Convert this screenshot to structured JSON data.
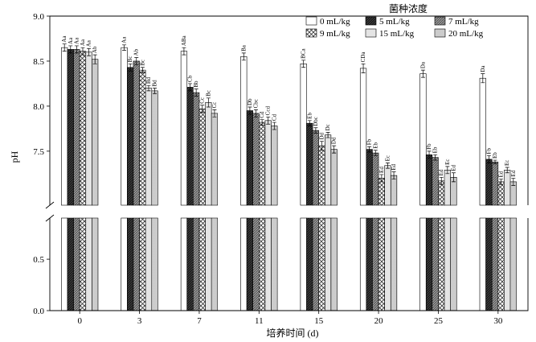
{
  "chart_data": {
    "type": "bar",
    "xlabel": "培养时间 (d)",
    "ylabel": "pH",
    "categories": [
      "0",
      "3",
      "7",
      "11",
      "15",
      "20",
      "25",
      "30"
    ],
    "legend_title": "菌种浓度",
    "legend_placement": "top-right",
    "y_axis": {
      "broken": true,
      "lower_range": [
        0.0,
        0.9
      ],
      "lower_ticks": [
        "0.0",
        "0.5"
      ],
      "upper_range": [
        6.9,
        9.0
      ],
      "upper_ticks": [
        "7.5",
        "8.0",
        "8.5",
        "9.0"
      ]
    },
    "grid": false,
    "series": [
      {
        "name": "0 mL/kg",
        "fill": "#ffffff",
        "pattern": "open",
        "values": [
          8.65,
          8.65,
          8.61,
          8.55,
          8.47,
          8.42,
          8.36,
          8.31
        ],
        "errors": [
          0.04,
          0.03,
          0.04,
          0.04,
          0.04,
          0.05,
          0.04,
          0.05
        ],
        "labels": [
          "Aa",
          "Aa",
          "ABa",
          "Ba",
          "BCa",
          "CDa",
          "Da",
          "Da"
        ]
      },
      {
        "name": "5 mL/kg",
        "fill": "#222222",
        "pattern": "dark",
        "values": [
          8.63,
          8.43,
          8.21,
          7.95,
          7.81,
          7.52,
          7.46,
          7.41
        ],
        "errors": [
          0.04,
          0.04,
          0.04,
          0.04,
          0.03,
          0.03,
          0.04,
          0.04
        ],
        "labels": [
          "Aa",
          "Bc",
          "Cb",
          "Db",
          "Eb",
          "Fb",
          "Fb",
          "Fb"
        ]
      },
      {
        "name": "7 mL/kg",
        "fill": "#8a8a8a",
        "pattern": "gray-hatch",
        "values": [
          8.63,
          8.5,
          8.15,
          7.92,
          7.73,
          7.48,
          7.43,
          7.38
        ],
        "errors": [
          0.04,
          0.04,
          0.04,
          0.04,
          0.03,
          0.03,
          0.03,
          0.02
        ],
        "labels": [
          "Aa",
          "Ab",
          "Bb",
          "Cbc",
          "Dbc",
          "Eb",
          "Eb",
          "Eb"
        ]
      },
      {
        "name": "9 mL/kg",
        "fill": "#ffffff",
        "pattern": "crosshatch",
        "values": [
          8.61,
          8.4,
          7.97,
          7.82,
          7.56,
          7.2,
          7.17,
          7.16
        ],
        "errors": [
          0.04,
          0.03,
          0.04,
          0.03,
          0.05,
          0.04,
          0.04,
          0.03
        ],
        "labels": [
          "Aa",
          "Bc",
          "Cc",
          "Cd",
          "Dd",
          "Ed",
          "Ed",
          "Ed"
        ]
      },
      {
        "name": "15 mL/kg",
        "fill": "#ffffff",
        "pattern": "vertical-lines",
        "values": [
          8.6,
          8.2,
          8.04,
          7.84,
          7.68,
          7.34,
          7.29,
          7.29
        ],
        "errors": [
          0.04,
          0.03,
          0.05,
          0.04,
          0.03,
          0.03,
          0.04,
          0.03
        ],
        "labels": [
          "Aa",
          "Bd",
          "Bc",
          "Ccd",
          "Dc",
          "Ec",
          "Ec",
          "Ec"
        ]
      },
      {
        "name": "20 mL/kg",
        "fill": "#dddddd",
        "pattern": "dotted",
        "values": [
          8.52,
          8.17,
          7.92,
          7.78,
          7.52,
          7.23,
          7.21,
          7.16
        ],
        "errors": [
          0.05,
          0.03,
          0.04,
          0.04,
          0.04,
          0.04,
          0.05,
          0.04
        ],
        "labels": [
          "Ab",
          "Bd",
          "Cc",
          "Cd",
          "Dd",
          "Ed",
          "Ed",
          "Ed"
        ]
      }
    ]
  }
}
